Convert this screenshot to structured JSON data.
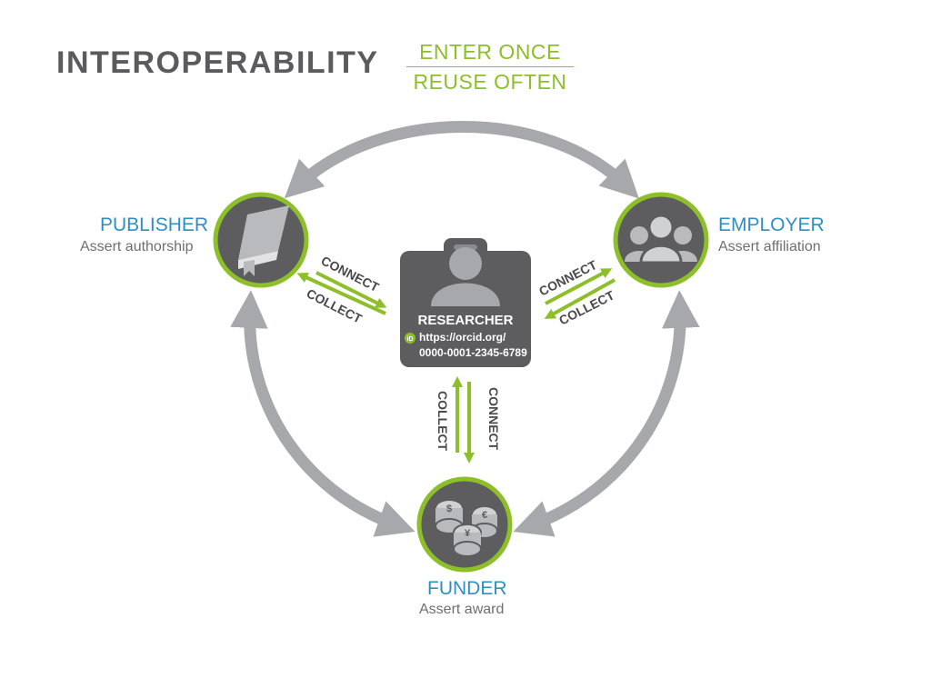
{
  "header": {
    "title": "INTEROPERABILITY",
    "tagline_top": "ENTER ONCE",
    "tagline_bottom": "REUSE OFTEN"
  },
  "nodes": {
    "publisher": {
      "label": "PUBLISHER",
      "sub": "Assert authorship",
      "icon": "book-icon"
    },
    "employer": {
      "label": "EMPLOYER",
      "sub": "Assert affiliation",
      "icon": "people-icon"
    },
    "funder": {
      "label": "FUNDER",
      "sub": "Assert award",
      "icon": "coins-icon"
    },
    "researcher": {
      "label": "RESEARCHER",
      "url_line1": "https://orcid.org/",
      "url_line2": "0000-0001-2345-6789",
      "icon": "person-icon",
      "badge": "iD"
    }
  },
  "links": {
    "connect": "CONNECT",
    "collect": "COLLECT"
  },
  "colors": {
    "accent_green": "#8cbf2a",
    "label_blue": "#2f8fc2",
    "node_dark": "#5d5d60",
    "arrow_gray": "#a7a8ab",
    "title_gray": "#5b5b5e"
  }
}
